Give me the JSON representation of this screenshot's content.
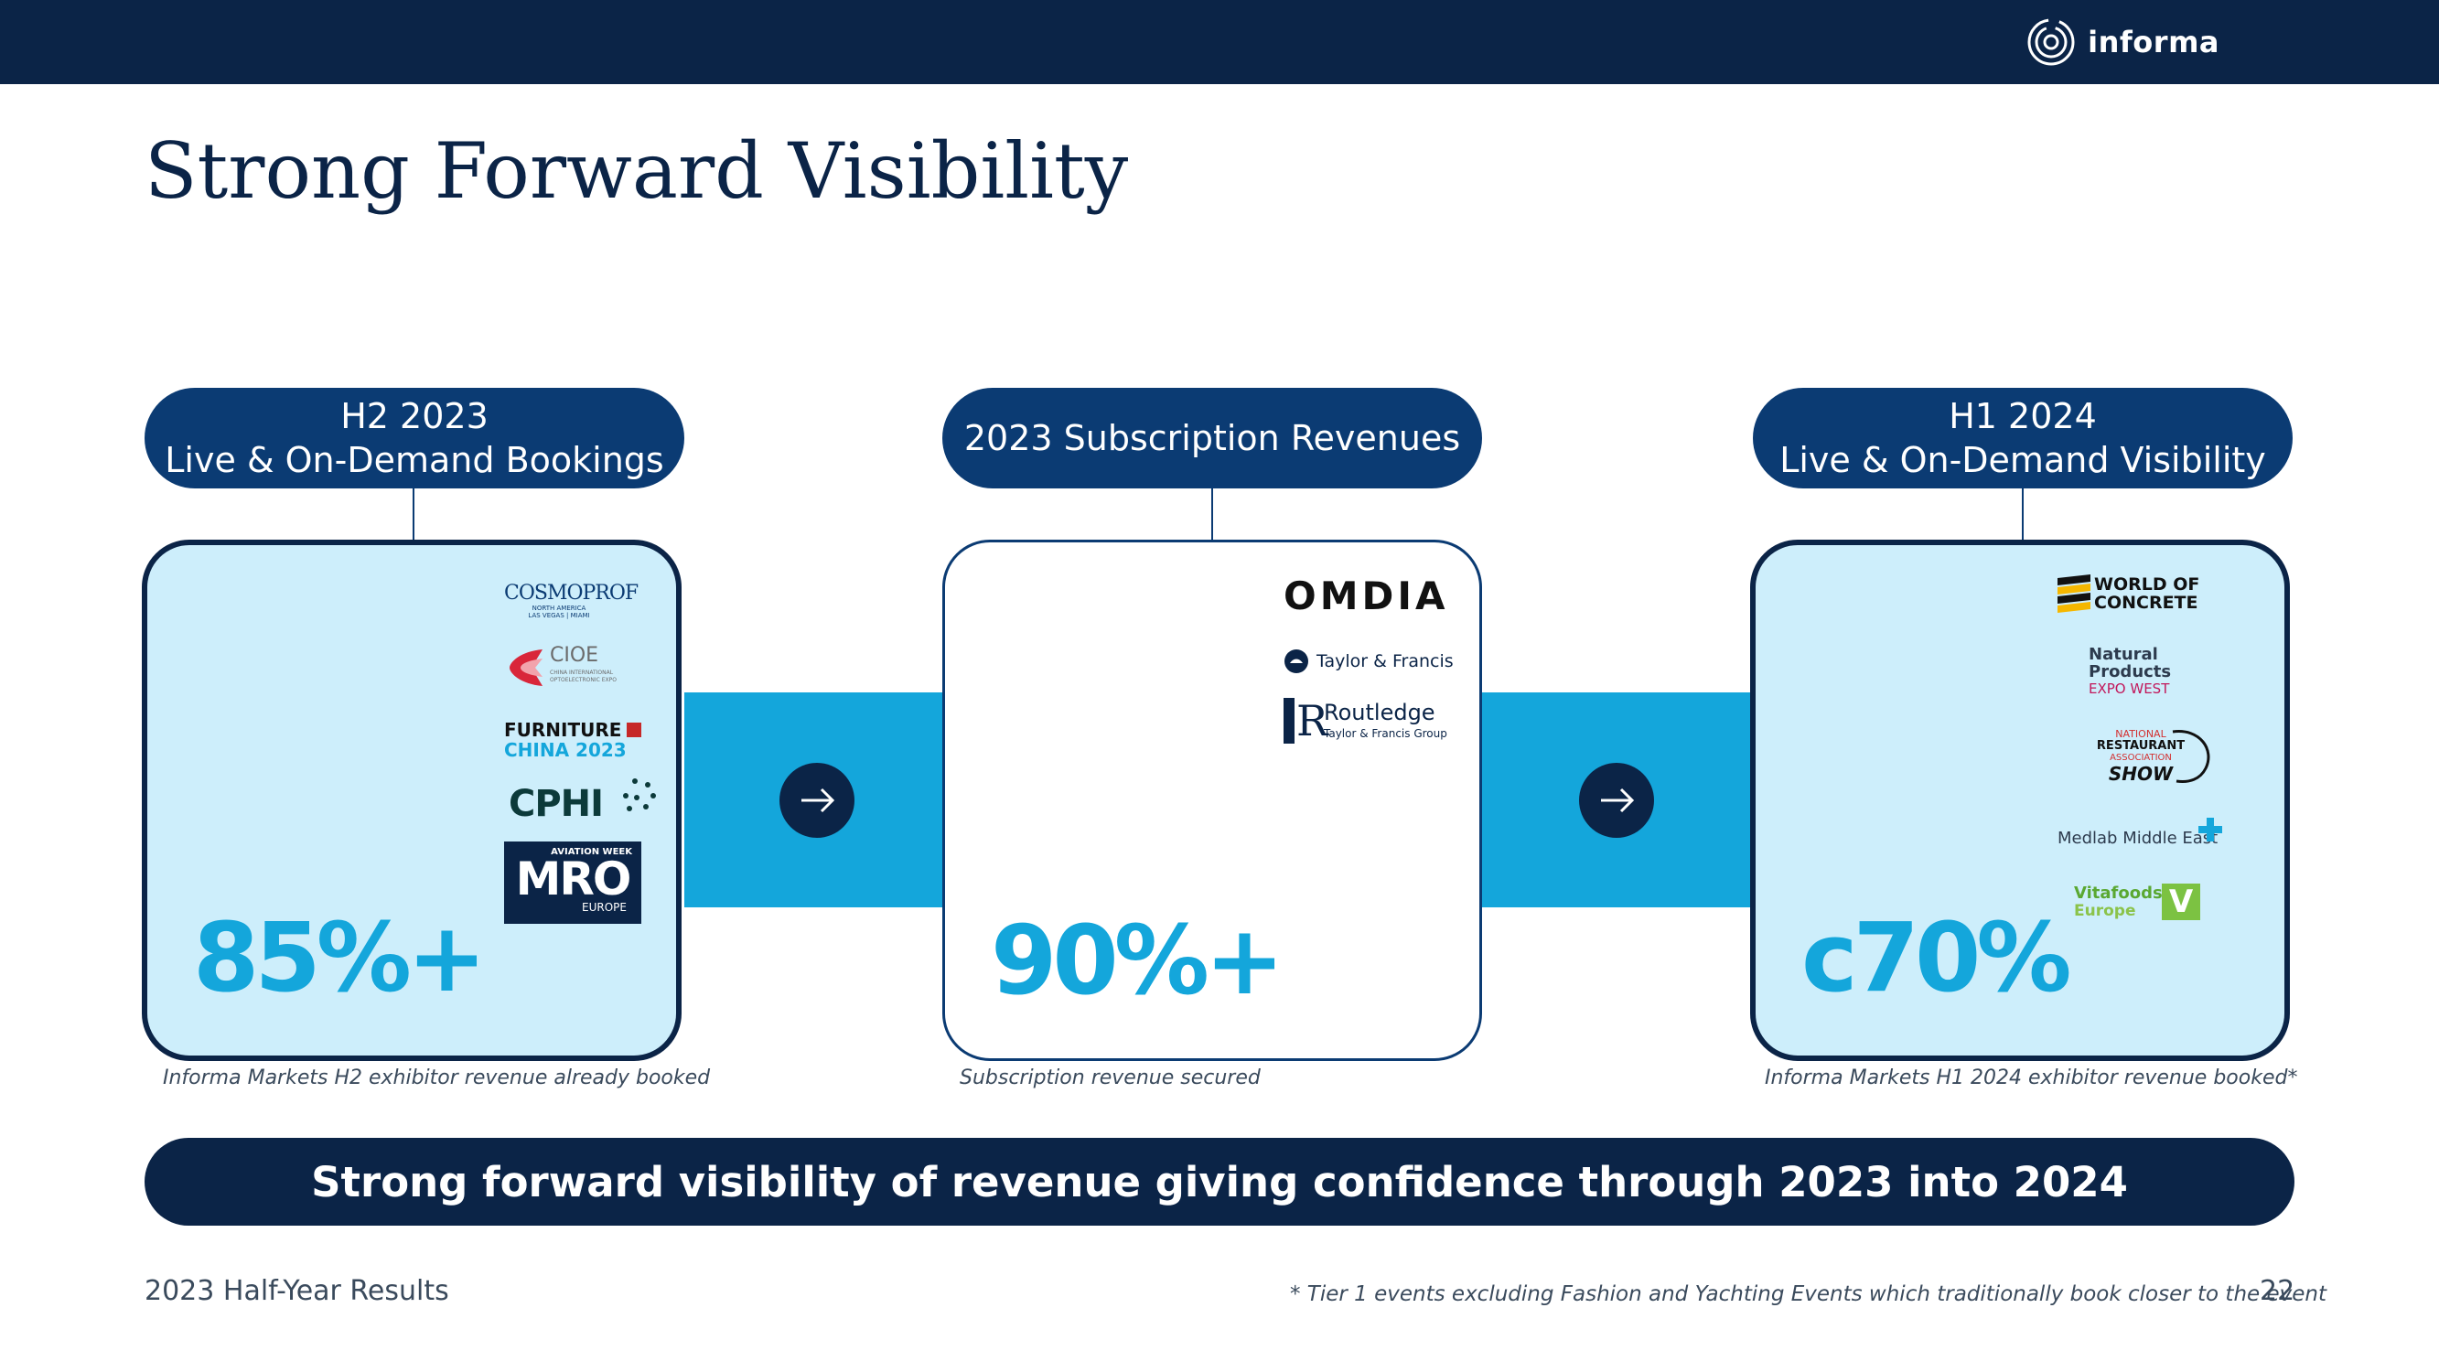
{
  "header": {
    "brand": "informa"
  },
  "title": "Strong Forward Visibility",
  "columns": [
    {
      "heading_line1": "H2 2023",
      "heading_line2": "Live & On-Demand Bookings",
      "value": "85%+",
      "caption": "Informa Markets H2 exhibitor revenue already booked",
      "logos": {
        "cosmoprof": {
          "name": "COSMOPROF",
          "sub": "NORTH AMERICA",
          "sub2": "LAS VEGAS | MIAMI"
        },
        "cioe": {
          "name": "CIOE",
          "sub": "CHINA INTERNATIONAL",
          "sub2": "OPTOELECTRONIC EXPO"
        },
        "furniture": {
          "line1": "FURNITURE",
          "line2": "CHINA 2023"
        },
        "cphi": {
          "name": "CPHI"
        },
        "mro": {
          "top": "AVIATION WEEK",
          "name": "MRO",
          "bottom": "EUROPE"
        }
      }
    },
    {
      "heading_line1": "2023 Subscription Revenues",
      "value": "90%+",
      "caption": "Subscription revenue secured",
      "logos": {
        "omdia": {
          "name": "OMDIA"
        },
        "taylor": {
          "name": "Taylor & Francis"
        },
        "routledge": {
          "name": "Routledge",
          "sub": "Taylor & Francis Group"
        }
      }
    },
    {
      "heading_line1": "H1 2024",
      "heading_line2": "Live & On-Demand Visibility",
      "value": "c70%",
      "caption": "Informa Markets H1 2024 exhibitor revenue booked*",
      "logos": {
        "woc": {
          "line1": "WORLD OF",
          "line2": "CONCRETE"
        },
        "natural": {
          "line1": "Natural",
          "line2": "Products",
          "line3": "EXPO WEST"
        },
        "nra": {
          "line1": "NATIONAL",
          "line2": "RESTAURANT",
          "line3": "ASSOCIATION",
          "line4": "SHOW"
        },
        "medlab": {
          "name": "Medlab Middle East"
        },
        "vitafoods": {
          "line1": "Vitafoods",
          "line2": "Europe",
          "mark": "V"
        }
      }
    }
  ],
  "banner": "Strong forward visibility of revenue giving confidence through 2023 into 2024",
  "footer": {
    "left": "2023 Half-Year Results",
    "footnote": "* Tier 1 events excluding Fashion and Yachting Events which traditionally book closer to the event",
    "page": "22"
  },
  "colors": {
    "navy": "#0b2447",
    "pill": "#0b3b73",
    "accent": "#14a6db",
    "panel": "#cdeefb"
  }
}
